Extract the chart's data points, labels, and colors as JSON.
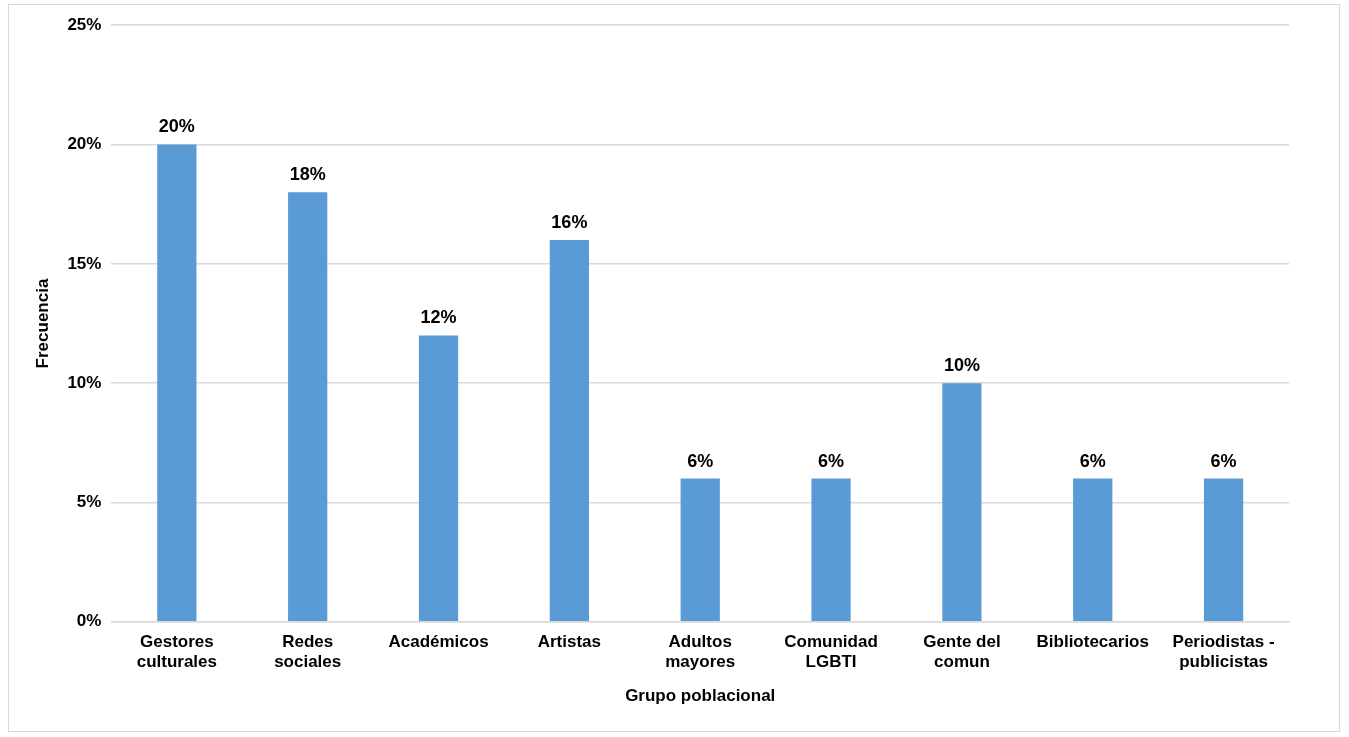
{
  "chart_data": {
    "type": "bar",
    "xlabel": "Grupo poblacional",
    "ylabel": "Frecuencia",
    "categories": [
      "Gestores culturales",
      "Redes sociales",
      "Académicos",
      "Artistas",
      "Adultos mayores",
      "Comunidad LGBTI",
      "Gente del comun",
      "Bibliotecarios",
      "Periodistas - publicistas"
    ],
    "values": [
      20,
      18,
      12,
      16,
      6,
      6,
      10,
      6,
      6
    ],
    "value_labels": [
      "20%",
      "18%",
      "12%",
      "16%",
      "6%",
      "6%",
      "10%",
      "6%",
      "6%"
    ],
    "color": "#5b9bd5",
    "ylim": [
      0,
      25
    ],
    "yticks": [
      {
        "value": 0,
        "label": "0%"
      },
      {
        "value": 5,
        "label": "5%"
      },
      {
        "value": 10,
        "label": "10%"
      },
      {
        "value": 15,
        "label": "15%"
      },
      {
        "value": 20,
        "label": "20%"
      },
      {
        "value": 25,
        "label": "25%"
      }
    ],
    "grid": "y",
    "legend": false
  }
}
